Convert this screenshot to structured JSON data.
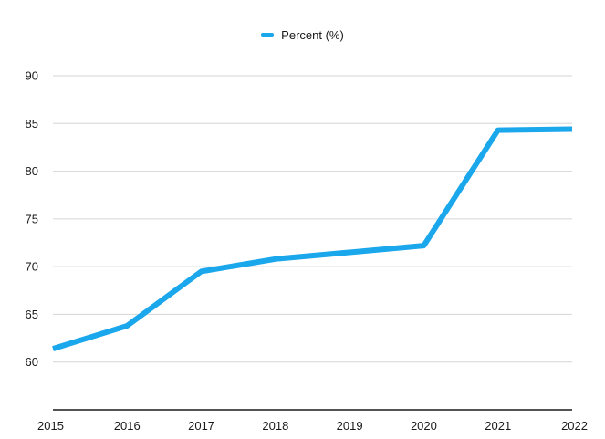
{
  "chart_data": {
    "type": "line",
    "title": "",
    "xlabel": "",
    "ylabel": "",
    "categories": [
      "2015",
      "2016",
      "2017",
      "2018",
      "2019",
      "2020",
      "2021",
      "2022"
    ],
    "series": [
      {
        "name": "Percent (%)",
        "color": "#1aa7ec",
        "values": [
          61.4,
          63.8,
          69.5,
          70.8,
          71.5,
          72.2,
          84.3,
          84.4
        ]
      }
    ],
    "ylim": [
      55,
      90
    ],
    "yticks": [
      "60",
      "65",
      "70",
      "75",
      "80",
      "85",
      "90"
    ],
    "grid": true,
    "legend": "top-center"
  }
}
